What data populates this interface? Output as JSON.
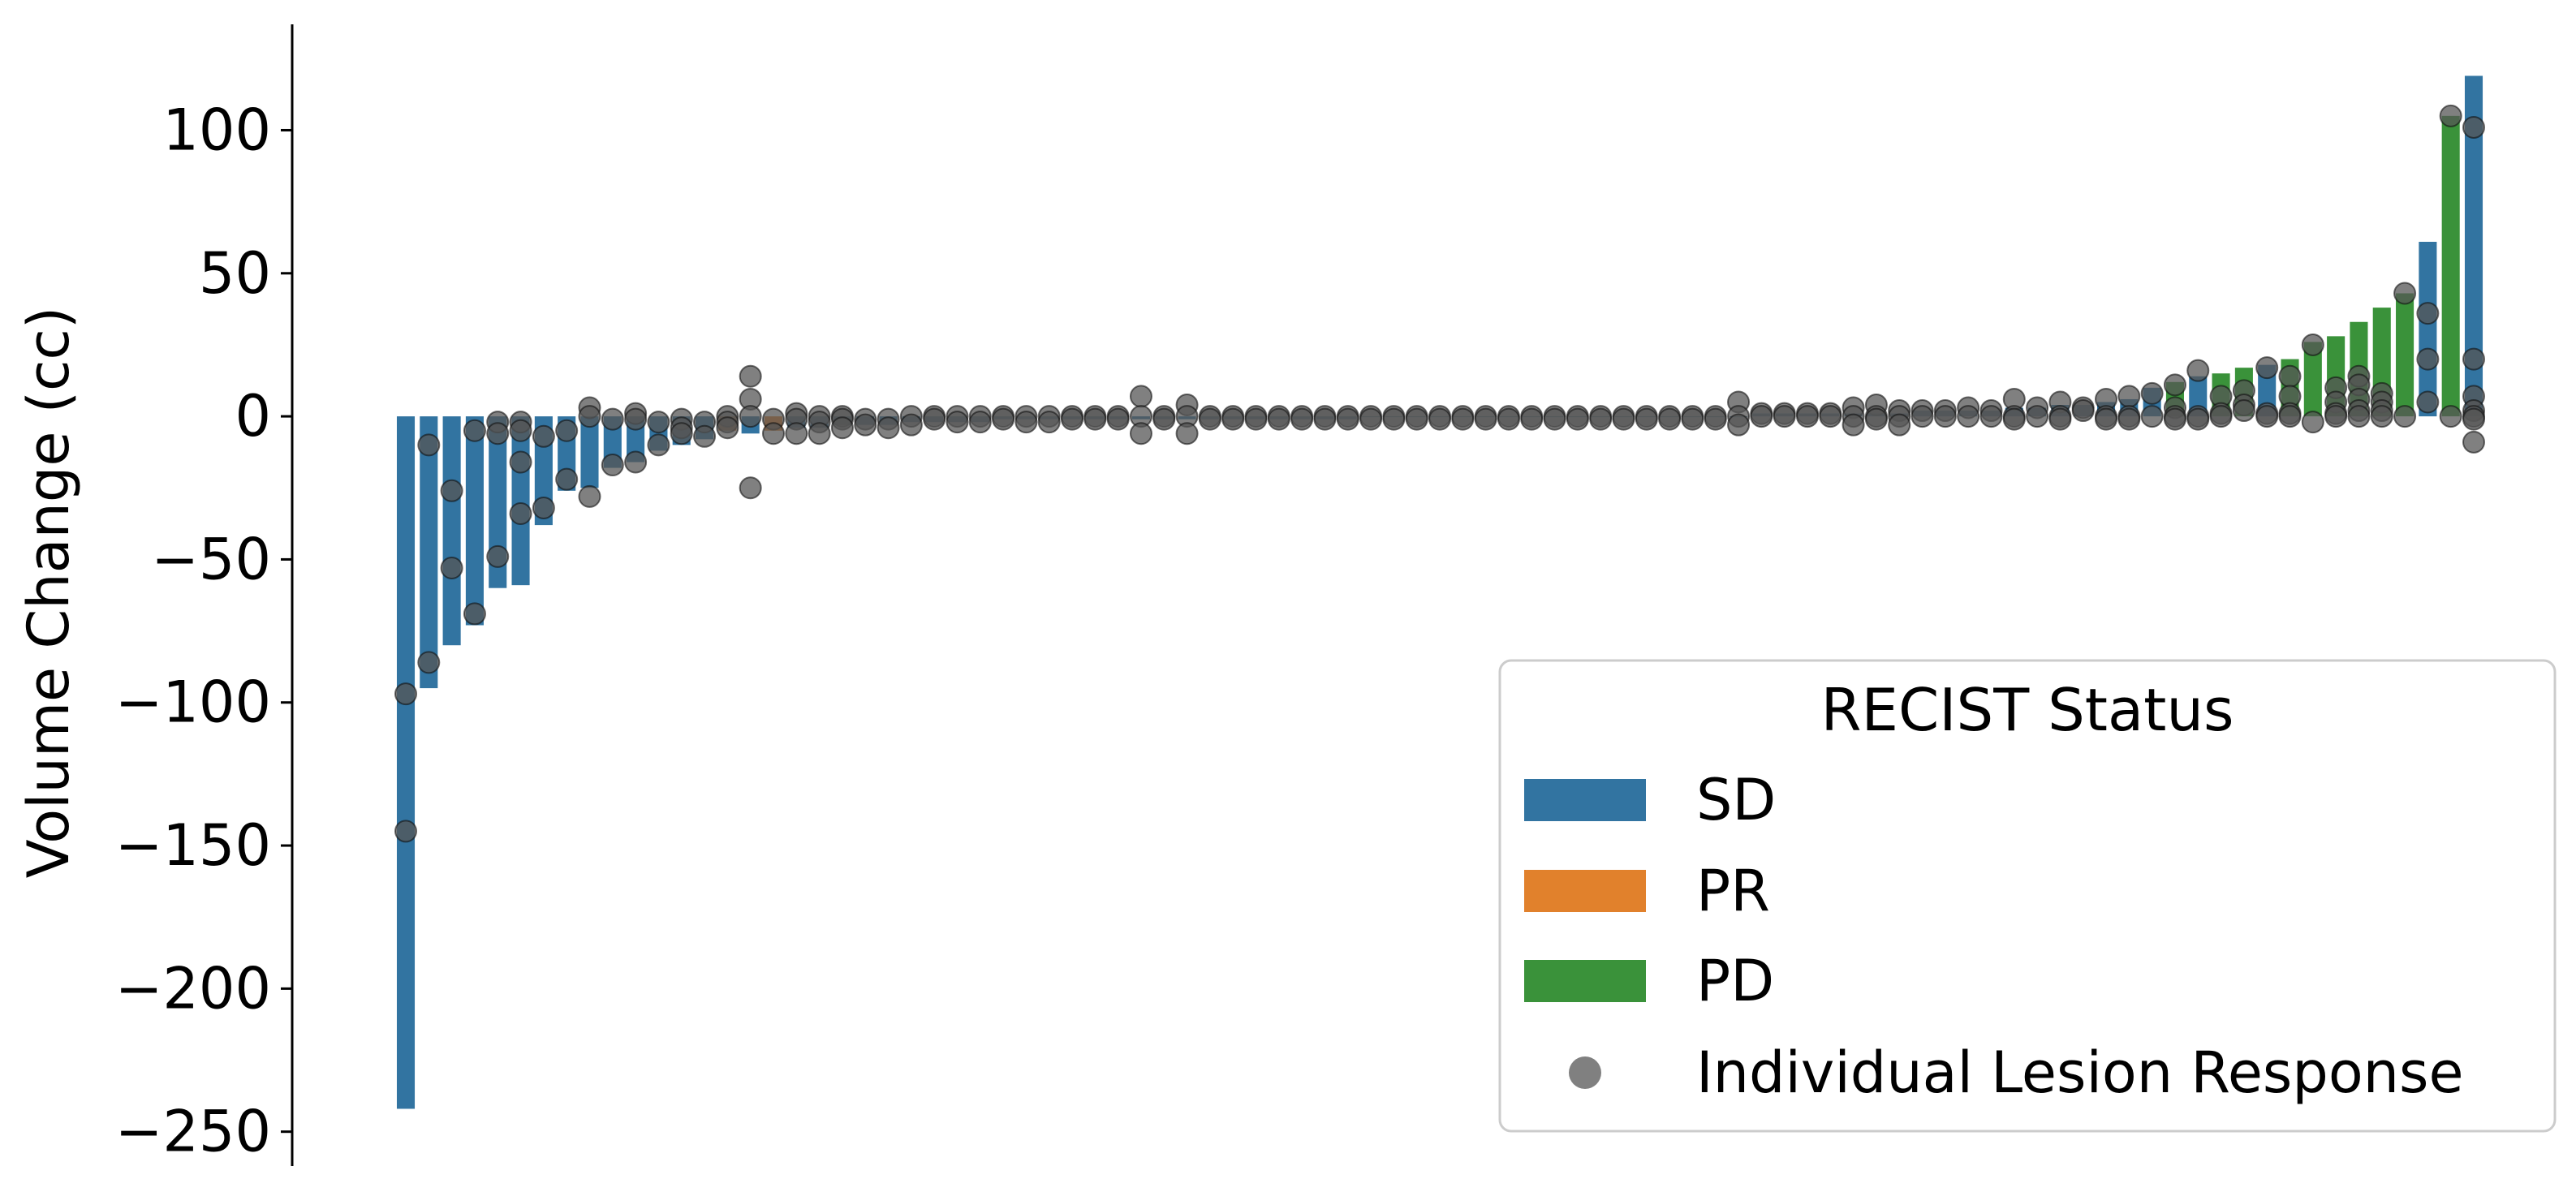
{
  "chart_data": {
    "type": "bar",
    "title": "",
    "xlabel": "",
    "ylabel": "Volume Change (cc)",
    "ylim": [
      -262,
      137
    ],
    "yticks": [
      100,
      50,
      0,
      -50,
      -100,
      -150,
      -200,
      -250
    ],
    "ytick_labels": [
      "100",
      "50",
      "0",
      "−50",
      "−100",
      "−150",
      "−200",
      "−250"
    ],
    "legend": {
      "title": "RECIST Status",
      "placement": "lower-right",
      "entries": [
        {
          "label": "SD",
          "kind": "bar",
          "color": "#3274a1"
        },
        {
          "label": "PR",
          "kind": "bar",
          "color": "#e1812c"
        },
        {
          "label": "PD",
          "kind": "bar",
          "color": "#3a923a"
        },
        {
          "label": "Individual Lesion Response",
          "kind": "marker",
          "color": "#808080"
        }
      ]
    },
    "colors": {
      "SD": "#3274a1",
      "PR": "#e1812c",
      "PD": "#3a923a",
      "lesion": "#555555"
    },
    "bars": [
      {
        "status": "SD",
        "value": -242,
        "lesions": [
          -97,
          -145
        ]
      },
      {
        "status": "SD",
        "value": -95,
        "lesions": [
          -10,
          -86
        ]
      },
      {
        "status": "SD",
        "value": -80,
        "lesions": [
          -26,
          -53
        ]
      },
      {
        "status": "SD",
        "value": -73,
        "lesions": [
          -5,
          -69
        ]
      },
      {
        "status": "SD",
        "value": -60,
        "lesions": [
          -2,
          -6,
          -49
        ]
      },
      {
        "status": "SD",
        "value": -59,
        "lesions": [
          -2,
          -5,
          -16,
          -34
        ]
      },
      {
        "status": "SD",
        "value": -38,
        "lesions": [
          -7,
          -32
        ]
      },
      {
        "status": "SD",
        "value": -26,
        "lesions": [
          -5,
          -22
        ]
      },
      {
        "status": "SD",
        "value": -25,
        "lesions": [
          3,
          0,
          -28
        ]
      },
      {
        "status": "SD",
        "value": -18,
        "lesions": [
          -1,
          -17
        ]
      },
      {
        "status": "SD",
        "value": -16,
        "lesions": [
          1,
          -1,
          -16
        ]
      },
      {
        "status": "SD",
        "value": -12,
        "lesions": [
          -2,
          -10
        ]
      },
      {
        "status": "SD",
        "value": -10,
        "lesions": [
          -1,
          -4,
          -6
        ]
      },
      {
        "status": "SD",
        "value": -8,
        "lesions": [
          -2,
          -7
        ]
      },
      {
        "status": "PR",
        "value": -5,
        "lesions": [
          0,
          -2,
          -4
        ]
      },
      {
        "status": "SD",
        "value": -6,
        "lesions": [
          14,
          6,
          0,
          -25
        ]
      },
      {
        "status": "PR",
        "value": -5,
        "lesions": [
          -1,
          -6
        ]
      },
      {
        "status": "SD",
        "value": -4,
        "lesions": [
          1,
          -1,
          -6
        ]
      },
      {
        "status": "SD",
        "value": -4,
        "lesions": [
          0,
          -2,
          -6
        ]
      },
      {
        "status": "SD",
        "value": -3,
        "lesions": [
          0,
          -1,
          -4
        ]
      },
      {
        "status": "SD",
        "value": -3,
        "lesions": [
          -1,
          -3
        ]
      },
      {
        "status": "SD",
        "value": -3,
        "lesions": [
          -1,
          -4
        ]
      },
      {
        "status": "SD",
        "value": -2,
        "lesions": [
          0,
          -3
        ]
      },
      {
        "status": "SD",
        "value": -2,
        "lesions": [
          0,
          -1
        ]
      },
      {
        "status": "SD",
        "value": -2,
        "lesions": [
          0,
          -2
        ]
      },
      {
        "status": "SD",
        "value": -2,
        "lesions": [
          0,
          -2
        ]
      },
      {
        "status": "SD",
        "value": -1,
        "lesions": [
          0,
          -1
        ]
      },
      {
        "status": "SD",
        "value": -1,
        "lesions": [
          0,
          -2
        ]
      },
      {
        "status": "SD",
        "value": -1,
        "lesions": [
          0,
          -2
        ]
      },
      {
        "status": "SD",
        "value": -1,
        "lesions": [
          0,
          -1
        ]
      },
      {
        "status": "SD",
        "value": -1,
        "lesions": [
          0,
          -1
        ]
      },
      {
        "status": "SD",
        "value": -1,
        "lesions": [
          0,
          -1
        ]
      },
      {
        "status": "SD",
        "value": -1,
        "lesions": [
          7,
          0,
          -6
        ]
      },
      {
        "status": "SD",
        "value": -1,
        "lesions": [
          0,
          -1
        ]
      },
      {
        "status": "SD",
        "value": -1,
        "lesions": [
          4,
          0,
          -6
        ]
      },
      {
        "status": "SD",
        "value": -1,
        "lesions": [
          0,
          -1
        ]
      },
      {
        "status": "SD",
        "value": -1,
        "lesions": [
          0,
          -1
        ]
      },
      {
        "status": "SD",
        "value": -1,
        "lesions": [
          0,
          -1
        ]
      },
      {
        "status": "SD",
        "value": -1,
        "lesions": [
          0,
          -1
        ]
      },
      {
        "status": "SD",
        "value": -1,
        "lesions": [
          0,
          -1
        ]
      },
      {
        "status": "SD",
        "value": -1,
        "lesions": [
          0,
          -1
        ]
      },
      {
        "status": "SD",
        "value": -1,
        "lesions": [
          0,
          -1
        ]
      },
      {
        "status": "SD",
        "value": 0,
        "lesions": [
          0,
          -1
        ]
      },
      {
        "status": "SD",
        "value": 0,
        "lesions": [
          0,
          -1
        ]
      },
      {
        "status": "SD",
        "value": 0,
        "lesions": [
          0,
          -1
        ]
      },
      {
        "status": "SD",
        "value": 0,
        "lesions": [
          0,
          -1
        ]
      },
      {
        "status": "SD",
        "value": 0,
        "lesions": [
          0,
          -1
        ]
      },
      {
        "status": "SD",
        "value": 0,
        "lesions": [
          0,
          -1
        ]
      },
      {
        "status": "SD",
        "value": 0,
        "lesions": [
          0,
          -1
        ]
      },
      {
        "status": "SD",
        "value": 0,
        "lesions": [
          0,
          -1
        ]
      },
      {
        "status": "SD",
        "value": 0,
        "lesions": [
          0,
          -1
        ]
      },
      {
        "status": "SD",
        "value": 0,
        "lesions": [
          0,
          -1
        ]
      },
      {
        "status": "SD",
        "value": 0,
        "lesions": [
          0,
          -1
        ]
      },
      {
        "status": "SD",
        "value": 0,
        "lesions": [
          0,
          -1
        ]
      },
      {
        "status": "SD",
        "value": 0,
        "lesions": [
          0,
          -1
        ]
      },
      {
        "status": "SD",
        "value": 0,
        "lesions": [
          0,
          -1
        ]
      },
      {
        "status": "SD",
        "value": 0,
        "lesions": [
          0,
          -1
        ]
      },
      {
        "status": "SD",
        "value": 0,
        "lesions": [
          0,
          -1
        ]
      },
      {
        "status": "SD",
        "value": 0,
        "lesions": [
          5,
          0,
          -3
        ]
      },
      {
        "status": "SD",
        "value": 1,
        "lesions": [
          1,
          0
        ]
      },
      {
        "status": "SD",
        "value": 1,
        "lesions": [
          1,
          0
        ]
      },
      {
        "status": "SD",
        "value": 1,
        "lesions": [
          1,
          0
        ]
      },
      {
        "status": "SD",
        "value": 1,
        "lesions": [
          1,
          0
        ]
      },
      {
        "status": "SD",
        "value": 1,
        "lesions": [
          3,
          0,
          -3
        ]
      },
      {
        "status": "SD",
        "value": 1,
        "lesions": [
          4,
          0,
          -1
        ]
      },
      {
        "status": "SD",
        "value": 1,
        "lesions": [
          2,
          0,
          -3
        ]
      },
      {
        "status": "SD",
        "value": 2,
        "lesions": [
          2,
          0
        ]
      },
      {
        "status": "SD",
        "value": 2,
        "lesions": [
          2,
          0
        ]
      },
      {
        "status": "SD",
        "value": 2,
        "lesions": [
          3,
          0
        ]
      },
      {
        "status": "SD",
        "value": 2,
        "lesions": [
          2,
          0
        ]
      },
      {
        "status": "SD",
        "value": 3,
        "lesions": [
          6,
          0,
          -1
        ]
      },
      {
        "status": "SD",
        "value": 3,
        "lesions": [
          3,
          0
        ]
      },
      {
        "status": "SD",
        "value": 4,
        "lesions": [
          5,
          0,
          -1
        ]
      },
      {
        "status": "SD",
        "value": 4,
        "lesions": [
          3,
          2
        ]
      },
      {
        "status": "SD",
        "value": 5,
        "lesions": [
          6,
          0,
          -1
        ]
      },
      {
        "status": "SD",
        "value": 6,
        "lesions": [
          7,
          0,
          -1
        ]
      },
      {
        "status": "SD",
        "value": 10,
        "lesions": [
          8,
          0
        ]
      },
      {
        "status": "PD",
        "value": 12,
        "lesions": [
          11,
          3,
          0,
          -1
        ]
      },
      {
        "status": "SD",
        "value": 14,
        "lesions": [
          16,
          0,
          -1
        ]
      },
      {
        "status": "PD",
        "value": 15,
        "lesions": [
          7,
          1,
          0
        ]
      },
      {
        "status": "PD",
        "value": 17,
        "lesions": [
          9,
          4,
          2
        ]
      },
      {
        "status": "SD",
        "value": 18,
        "lesions": [
          17,
          1,
          0
        ]
      },
      {
        "status": "PD",
        "value": 20,
        "lesions": [
          14,
          7,
          1,
          0
        ]
      },
      {
        "status": "PD",
        "value": 26,
        "lesions": [
          25,
          -2
        ]
      },
      {
        "status": "PD",
        "value": 28,
        "lesions": [
          10,
          5,
          1,
          0
        ]
      },
      {
        "status": "PD",
        "value": 33,
        "lesions": [
          14,
          11,
          6,
          2,
          0
        ]
      },
      {
        "status": "PD",
        "value": 38,
        "lesions": [
          8,
          5,
          2,
          0
        ]
      },
      {
        "status": "PD",
        "value": 43,
        "lesions": [
          43,
          0
        ]
      },
      {
        "status": "SD",
        "value": 61,
        "lesions": [
          36,
          20,
          5
        ]
      },
      {
        "status": "PD",
        "value": 105,
        "lesions": [
          105,
          0
        ]
      },
      {
        "status": "SD",
        "value": 119,
        "lesions": [
          101,
          20,
          7,
          2,
          0,
          -1,
          -9
        ]
      }
    ]
  }
}
